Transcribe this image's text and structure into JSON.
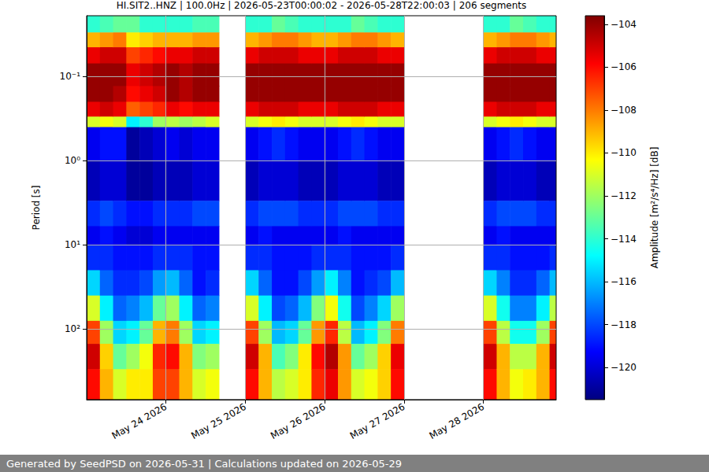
{
  "chart_data": {
    "type": "heatmap",
    "title": "HI.SIT2..HNZ | 100.0Hz | 2026-05-23T00:00:02 - 2026-05-28T22:00:03 | 206 segments",
    "ylabel": "Period [s]",
    "footer": "Generated by SeedPSD on 2026-05-31 | Calculations updated on 2026-05-29",
    "log": "y",
    "grid": true,
    "xlim": [
      "2026-05-23T00:00:02",
      "2026-05-28T22:00:03"
    ],
    "xticks": [
      {
        "value": "2026-05-24T00:00:00",
        "label": "May 24 2026"
      },
      {
        "value": "2026-05-25T00:00:00",
        "label": "May 25 2026"
      },
      {
        "value": "2026-05-26T00:00:00",
        "label": "May 26 2026"
      },
      {
        "value": "2026-05-27T00:00:00",
        "label": "May 27 2026"
      },
      {
        "value": "2026-05-28T00:00:00",
        "label": "May 28 2026"
      }
    ],
    "ylim": [
      0.019,
      690
    ],
    "yticks": [
      {
        "value": 0.1,
        "label": "10⁻¹"
      },
      {
        "value": 1,
        "label": "10⁰"
      },
      {
        "value": 10,
        "label": "10¹"
      },
      {
        "value": 100,
        "label": "10²"
      }
    ],
    "x_edges": [
      "2026-05-23T00:00:02",
      "2026-05-23T04:00:00",
      "2026-05-23T08:00:00",
      "2026-05-23T12:00:00",
      "2026-05-23T16:00:00",
      "2026-05-23T20:00:00",
      "2026-05-24T00:00:00",
      "2026-05-24T04:00:00",
      "2026-05-24T08:00:00",
      "2026-05-24T12:00:00",
      "2026-05-24T16:00:00",
      "2026-05-24T20:00:00",
      "2026-05-25T00:00:00",
      "2026-05-25T04:00:00",
      "2026-05-25T08:00:00",
      "2026-05-25T12:00:00",
      "2026-05-25T16:00:00",
      "2026-05-25T20:00:00",
      "2026-05-26T00:00:00",
      "2026-05-26T04:00:00",
      "2026-05-26T08:00:00",
      "2026-05-26T12:00:00",
      "2026-05-26T16:00:00",
      "2026-05-26T20:00:00",
      "2026-05-27T00:00:00",
      "2026-05-27T04:00:00",
      "2026-05-27T08:00:00",
      "2026-05-27T12:00:00",
      "2026-05-27T16:00:00",
      "2026-05-27T20:00:00",
      "2026-05-28T00:00:00",
      "2026-05-28T04:00:00",
      "2026-05-28T08:00:00",
      "2026-05-28T12:00:00",
      "2026-05-28T16:00:00",
      "2026-05-28T20:00:00",
      "2026-05-28T22:00:03"
    ],
    "y_edges": [
      0.019,
      0.03,
      0.045,
      0.07,
      0.13,
      0.2,
      0.3,
      0.4,
      1,
      3,
      6,
      10,
      20,
      40,
      80,
      150,
      300,
      690
    ],
    "values": [
      [
        -114,
        -109,
        -105.5,
        -104,
        -104,
        -105.5,
        -111,
        -119.5,
        -120.5,
        -118.5,
        -119.5,
        -118.5,
        -115.5,
        -111,
        -107,
        -105,
        -106
      ],
      [
        -113.5,
        -108.5,
        -105,
        -104,
        -104,
        -105,
        -110.5,
        -119,
        -120,
        -118,
        -119,
        -118.5,
        -117.5,
        -115,
        -112,
        -109.5,
        -109
      ],
      [
        -113,
        -108,
        -105,
        -104,
        -104.5,
        -105.5,
        -111,
        -119,
        -120,
        -118.5,
        -119.5,
        -119,
        -118.5,
        -117.5,
        -115.5,
        -113,
        -111
      ],
      [
        -113,
        -110,
        -107,
        -105.5,
        -106,
        -107.5,
        -115,
        -121,
        -121,
        -119,
        -120,
        -119,
        -118.5,
        -117,
        -115,
        -112,
        -110
      ],
      [
        -114,
        -109.5,
        -106.5,
        -105,
        -105.5,
        -107,
        -114,
        -120.5,
        -121,
        -119,
        -120,
        -119,
        -118,
        -116,
        -113,
        -110.5,
        -110
      ],
      [
        -114,
        -109,
        -106,
        -104.5,
        -105,
        -106.5,
        -112,
        -120,
        -120.5,
        -118.5,
        -119.5,
        -118.5,
        -116.5,
        -113,
        -109,
        -106.5,
        -107
      ],
      [
        -114,
        -109,
        -105.5,
        -104,
        -104,
        -105.5,
        -111.5,
        -119.5,
        -120.5,
        -118.5,
        -119.5,
        -118.5,
        -116,
        -112,
        -108,
        -106,
        -107
      ],
      [
        -114,
        -109,
        -105.5,
        -104.5,
        -104.5,
        -106,
        -112,
        -120,
        -120.5,
        -118.5,
        -119.5,
        -118.5,
        -117.5,
        -115,
        -112,
        -109,
        -109
      ],
      [
        -113.5,
        -108.5,
        -105,
        -104,
        -104,
        -105.5,
        -111.5,
        -119.5,
        -120,
        -118,
        -119.5,
        -119,
        -119,
        -117.5,
        -115.5,
        -112.5,
        -111
      ],
      [
        -113.5,
        -108.5,
        -105,
        -104,
        -104,
        -105.5,
        -111,
        -119.5,
        -120,
        -118,
        -119.5,
        -119,
        -118.5,
        -117,
        -115,
        -112,
        -110.5
      ],
      null,
      null,
      [
        -114,
        -109,
        -105.5,
        -104,
        -104,
        -105.5,
        -111,
        -119.5,
        -120.5,
        -118.5,
        -119.5,
        -118.5,
        -115.5,
        -111,
        -107,
        -105,
        -106
      ],
      [
        -114,
        -108.5,
        -105,
        -104,
        -104,
        -105,
        -110.5,
        -119,
        -120,
        -118,
        -119,
        -118.5,
        -117.5,
        -115,
        -112,
        -109,
        -109
      ],
      [
        -113,
        -108,
        -105,
        -104,
        -104,
        -105,
        -110,
        -118.5,
        -120,
        -118,
        -119.5,
        -119,
        -119,
        -118,
        -116,
        -113.5,
        -111.5
      ],
      [
        -113.5,
        -108,
        -105,
        -104,
        -104,
        -105,
        -110.5,
        -119,
        -120,
        -118,
        -119.5,
        -119,
        -119,
        -117.5,
        -115.5,
        -112.5,
        -111
      ],
      [
        -114,
        -108.5,
        -105.5,
        -104,
        -104,
        -105.5,
        -111,
        -119.5,
        -120.5,
        -118.5,
        -119.5,
        -119,
        -118,
        -116,
        -113,
        -110,
        -110
      ],
      [
        -114,
        -109,
        -105.5,
        -104,
        -104,
        -105.5,
        -111,
        -119.5,
        -120.5,
        -118.5,
        -119.5,
        -118.5,
        -116.5,
        -112.5,
        -108.5,
        -106,
        -106.5
      ],
      [
        -114,
        -109,
        -105.5,
        -104,
        -104,
        -105.5,
        -111,
        -119.5,
        -120.5,
        -118.5,
        -119.5,
        -118.5,
        -115,
        -110.5,
        -106.5,
        -104.5,
        -105.5
      ],
      [
        -114,
        -108.5,
        -105,
        -104,
        -104,
        -105,
        -110.5,
        -119,
        -120,
        -118,
        -119,
        -118.5,
        -117,
        -114.5,
        -111.5,
        -108.5,
        -108.5
      ],
      [
        -113,
        -108,
        -105,
        -104,
        -104,
        -105,
        -110,
        -118.5,
        -120,
        -118,
        -119.5,
        -119,
        -119,
        -118,
        -116,
        -113,
        -111
      ],
      [
        -113.5,
        -108,
        -105,
        -104,
        -104,
        -105,
        -110.5,
        -119,
        -120,
        -118,
        -119.5,
        -119,
        -118.5,
        -117,
        -115,
        -112,
        -110.5
      ],
      [
        -114,
        -108.5,
        -105.5,
        -104,
        -104,
        -105.5,
        -111,
        -119.5,
        -120.5,
        -118.5,
        -119.5,
        -119,
        -118,
        -115.5,
        -112.5,
        -109.5,
        -109.5
      ],
      [
        -114,
        -109,
        -105.5,
        -104,
        -104,
        -105.5,
        -111,
        -119.5,
        -120.5,
        -118.5,
        -119.5,
        -118.5,
        -116,
        -112,
        -108,
        -105.5,
        -106
      ],
      null,
      null,
      null,
      null,
      null,
      null,
      [
        -114,
        -109,
        -105.5,
        -104,
        -104,
        -105.5,
        -111,
        -119.5,
        -120.5,
        -118.5,
        -119.5,
        -118.5,
        -115.5,
        -111,
        -107,
        -105,
        -106
      ],
      [
        -114,
        -108.5,
        -105,
        -104,
        -104,
        -105,
        -110.5,
        -119,
        -120,
        -118,
        -119,
        -118.5,
        -117,
        -114.5,
        -111.5,
        -109,
        -109
      ],
      [
        -113,
        -108,
        -105,
        -104,
        -104,
        -105,
        -110,
        -118.5,
        -120,
        -118,
        -119.5,
        -119,
        -118.5,
        -117,
        -114.5,
        -111.5,
        -110.5
      ],
      [
        -113.5,
        -108,
        -105,
        -104,
        -104,
        -105,
        -110.5,
        -119,
        -120,
        -118,
        -119.5,
        -119,
        -118.5,
        -117,
        -114.5,
        -111.5,
        -110
      ],
      [
        -114,
        -108.5,
        -105.5,
        -104,
        -104,
        -105.5,
        -111,
        -119.5,
        -120.5,
        -118.5,
        -119.5,
        -119,
        -117.5,
        -115,
        -112,
        -109,
        -109
      ],
      [
        -114,
        -109,
        -105.5,
        -104,
        -104,
        -105.5,
        -111,
        -119.5,
        -120.5,
        -118.5,
        -119.5,
        -118.5,
        -116,
        -111.5,
        -107,
        -105,
        -106
      ]
    ],
    "colorbar": {
      "label": "Amplitude [m²/s⁴/Hz] [dB]",
      "lim": [
        -121.5,
        -103.6
      ],
      "ticks": [
        {
          "value": -104,
          "label": "−104"
        },
        {
          "value": -106,
          "label": "−106"
        },
        {
          "value": -108,
          "label": "−108"
        },
        {
          "value": -110,
          "label": "−110"
        },
        {
          "value": -112,
          "label": "−112"
        },
        {
          "value": -114,
          "label": "−114"
        },
        {
          "value": -116,
          "label": "−116"
        },
        {
          "value": -118,
          "label": "−118"
        },
        {
          "value": -120,
          "label": "−120"
        }
      ]
    }
  }
}
